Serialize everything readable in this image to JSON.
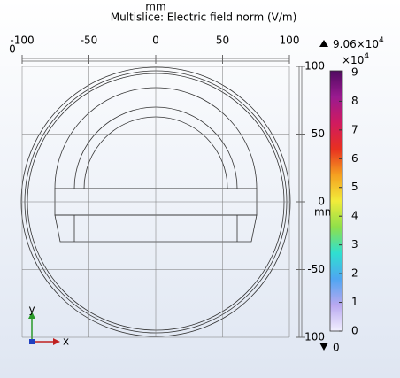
{
  "title": "Multislice: Electric field norm (V/m)",
  "x_axis": {
    "label": "mm",
    "ticks": [
      -100,
      -50,
      0,
      50,
      100
    ]
  },
  "y_axis": {
    "label": "mm",
    "ticks": [
      100,
      50,
      0,
      -50,
      -100
    ]
  },
  "z_tick": "0",
  "colorbar": {
    "max": "9.06",
    "max_base": "×10",
    "max_exp": "4",
    "min": "0",
    "multiplier_base": "×10",
    "multiplier_exp": "4",
    "lim": [
      0,
      9.06
    ],
    "ticks": [
      0,
      1,
      2,
      3,
      4,
      5,
      6,
      7,
      8,
      9
    ]
  },
  "triad": {
    "x": "x",
    "y": "y"
  }
}
